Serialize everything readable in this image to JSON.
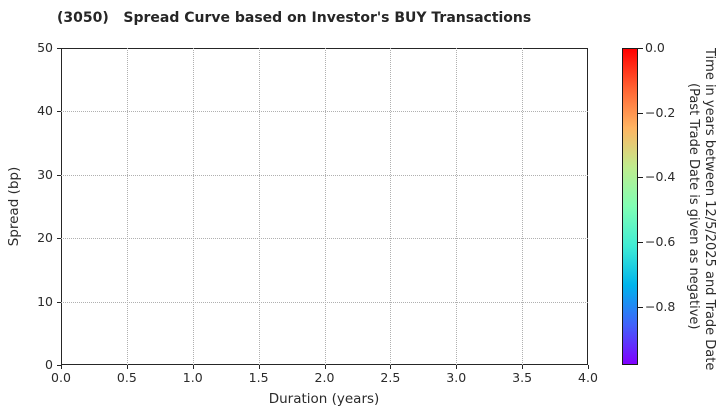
{
  "figure": {
    "background": "#ffffff"
  },
  "chart_data": {
    "type": "scatter",
    "title": "(3050)   Spread Curve based on Investor's BUY Transactions",
    "xlabel": "Duration (years)",
    "ylabel": "Spread (bp)",
    "xlim": [
      0.0,
      4.0
    ],
    "ylim": [
      0,
      50
    ],
    "x_ticks": [
      0.0,
      0.5,
      1.0,
      1.5,
      2.0,
      2.5,
      3.0,
      3.5,
      4.0
    ],
    "x_tick_labels": [
      "0.0",
      "0.5",
      "1.0",
      "1.5",
      "2.0",
      "2.5",
      "3.0",
      "3.5",
      "4.0"
    ],
    "y_ticks": [
      0,
      10,
      20,
      30,
      40,
      50
    ],
    "y_tick_labels": [
      "0",
      "10",
      "20",
      "30",
      "40",
      "50"
    ],
    "grid": true,
    "grid_style": "dotted",
    "legend": "none",
    "series": [],
    "colorbar": {
      "label_line1": "Time in years between 12/5/2025 and Trade Date",
      "label_line2": "(Past Trade Date is given as negative)",
      "vmax": 0.0,
      "vmin": -0.98,
      "ticks": [
        0.0,
        -0.2,
        -0.4,
        -0.6,
        -0.8
      ],
      "tick_labels": [
        "0.0",
        "−0.2",
        "−0.4",
        "−0.6",
        "−0.8"
      ],
      "colormap": "rainbow_r",
      "gradient_colors": [
        "#ff0000",
        "#ff6232",
        "#ffb462",
        "#bfec8e",
        "#80ffb4",
        "#40ecd4",
        "#00b4ec",
        "#4062fa",
        "#8000ff"
      ]
    }
  },
  "colors": {
    "axis": "#262626",
    "grid": "#b0b0b0",
    "text": "#2b2b2b",
    "title": "#262626",
    "background": "#ffffff"
  }
}
